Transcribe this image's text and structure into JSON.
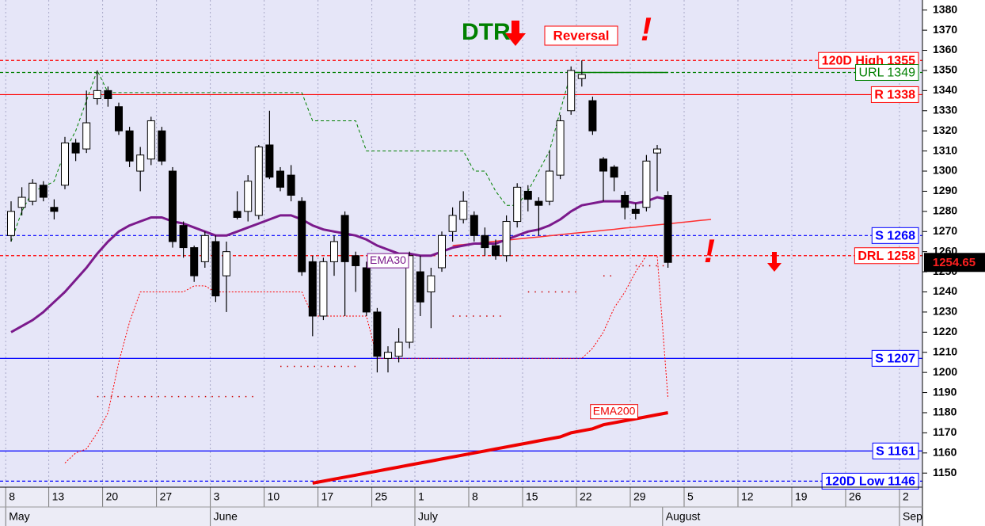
{
  "chart_data": {
    "type": "candlestick",
    "categories": [
      "8",
      null,
      null,
      null,
      "13",
      null,
      null,
      null,
      null,
      "20",
      null,
      null,
      null,
      null,
      "27",
      null,
      null,
      null,
      null,
      "3",
      null,
      null,
      null,
      null,
      "10",
      null,
      null,
      null,
      null,
      "17",
      null,
      null,
      null,
      null,
      "25",
      null,
      null,
      null,
      "1",
      null,
      null,
      null,
      null,
      "8",
      null,
      null,
      null,
      null,
      "15",
      null,
      null,
      null,
      null,
      "22",
      null,
      null,
      null,
      null,
      "29",
      null,
      null,
      null,
      null,
      "5",
      null,
      null,
      null,
      null,
      "12",
      null,
      null,
      null,
      null,
      "19",
      null,
      null,
      null,
      null,
      "26",
      null,
      null,
      null,
      null,
      "2",
      null
    ],
    "months": [
      "May",
      null,
      null,
      null,
      null,
      null,
      null,
      null,
      null,
      null,
      null,
      null,
      null,
      null,
      null,
      null,
      null,
      null,
      null,
      "June",
      null,
      null,
      null,
      null,
      null,
      null,
      null,
      null,
      null,
      null,
      null,
      null,
      null,
      null,
      null,
      null,
      null,
      null,
      "July",
      null,
      null,
      null,
      null,
      null,
      null,
      null,
      null,
      null,
      null,
      null,
      null,
      null,
      null,
      null,
      null,
      null,
      null,
      null,
      null,
      null,
      null,
      "August",
      null,
      null,
      null,
      null,
      null,
      null,
      null,
      null,
      null,
      null,
      null,
      null,
      null,
      null,
      null,
      null,
      null,
      null,
      null,
      null,
      null,
      "Sep",
      null
    ],
    "open": [
      1268,
      1282,
      1285,
      1293,
      1282,
      1293,
      1314,
      1311,
      1336,
      1340,
      1332,
      1320,
      1300,
      1306,
      1320,
      1300,
      1273,
      1262,
      1255,
      1265,
      1248,
      1280,
      1280,
      1278,
      1313,
      1300,
      1298,
      1285,
      1255,
      1228,
      1255,
      1278,
      1258,
      1252,
      1230,
      1207,
      1208,
      1215,
      1250,
      1240,
      1252,
      1270,
      1276,
      1278,
      1268,
      1263,
      1258,
      1275,
      1290,
      1285,
      1285,
      1298,
      1330,
      1346,
      1335,
      1306,
      1302,
      1288,
      1281,
      1282,
      1309,
      1288,
      null,
      null,
      null,
      null,
      null,
      null,
      null,
      null,
      null,
      null,
      null,
      null,
      null,
      null,
      null,
      null,
      null,
      null,
      null,
      null,
      null,
      null,
      null
    ],
    "high": [
      1285,
      1292,
      1296,
      1295,
      1286,
      1317,
      1316,
      1340,
      1350,
      1342,
      1334,
      1322,
      1312,
      1327,
      1322,
      1302,
      1275,
      1263,
      1270,
      1268,
      1265,
      1290,
      1298,
      1313,
      1330,
      1302,
      1303,
      1287,
      1258,
      1257,
      1268,
      1280,
      1260,
      1255,
      1232,
      1213,
      1222,
      1260,
      1258,
      1252,
      1270,
      1282,
      1290,
      1280,
      1272,
      1266,
      1278,
      1294,
      1293,
      1287,
      1310,
      1328,
      1352,
      1355,
      1337,
      1307,
      1303,
      1290,
      1284,
      1308,
      1313,
      1290,
      null,
      null,
      null,
      null,
      null,
      null,
      null,
      null,
      null,
      null,
      null,
      null,
      null,
      null,
      null,
      null,
      null,
      null,
      null,
      null,
      null,
      null,
      null
    ],
    "low": [
      1265,
      1278,
      1283,
      1285,
      1276,
      1291,
      1305,
      1309,
      1333,
      1332,
      1318,
      1302,
      1290,
      1303,
      1303,
      1262,
      1257,
      1245,
      1252,
      1235,
      1230,
      1276,
      1275,
      1276,
      1296,
      1290,
      1285,
      1248,
      1218,
      1226,
      1248,
      1228,
      1240,
      1228,
      1200,
      1200,
      1205,
      1212,
      1228,
      1222,
      1250,
      1265,
      1274,
      1265,
      1258,
      1256,
      1255,
      1272,
      1280,
      1268,
      1283,
      1296,
      1328,
      1342,
      1318,
      1285,
      1290,
      1276,
      1276,
      1280,
      1290,
      1252,
      null,
      null,
      null,
      null,
      null,
      null,
      null,
      null,
      null,
      null,
      null,
      null,
      null,
      null,
      null,
      null,
      null,
      null,
      null,
      null,
      null,
      null,
      null
    ],
    "close": [
      1280,
      1287,
      1294,
      1287,
      1280,
      1314,
      1309,
      1324,
      1340,
      1336,
      1320,
      1305,
      1308,
      1325,
      1305,
      1265,
      1262,
      1248,
      1268,
      1238,
      1260,
      1277,
      1295,
      1312,
      1297,
      1292,
      1288,
      1250,
      1228,
      1255,
      1265,
      1255,
      1253,
      1230,
      1208,
      1210,
      1215,
      1258,
      1235,
      1248,
      1268,
      1278,
      1285,
      1268,
      1262,
      1258,
      1275,
      1292,
      1286,
      1283,
      1300,
      1325,
      1350,
      1348,
      1320,
      1300,
      1297,
      1282,
      1279,
      1305,
      1311,
      1254.65,
      null,
      null,
      null,
      null,
      null,
      null,
      null,
      null,
      null,
      null,
      null,
      null,
      null,
      null,
      null,
      null,
      null,
      null,
      null,
      null,
      null,
      null,
      null
    ],
    "up_color": "#ffffff",
    "down_color": "#000000",
    "ylim": [
      1143,
      1385
    ],
    "yticks": [
      1150,
      1160,
      1170,
      1180,
      1190,
      1200,
      1210,
      1220,
      1230,
      1240,
      1250,
      1260,
      1270,
      1280,
      1290,
      1300,
      1310,
      1320,
      1330,
      1340,
      1350,
      1360,
      1370,
      1380
    ],
    "grid": "x",
    "lines": [
      {
        "color": "#008000",
        "style": "dashed",
        "width": 1,
        "values": [
          1265,
          1280,
          1290,
          1292,
          1295,
          1310,
          1320,
          1335,
          1350,
          1339,
          1339,
          1339,
          1339,
          1339,
          1339,
          1339,
          1339,
          1339,
          1339,
          1339,
          1339,
          1339,
          1339,
          1339,
          1339,
          1339,
          1339,
          1339,
          1325,
          1325,
          1325,
          1325,
          1325,
          1310,
          1310,
          1310,
          1310,
          1310,
          1310,
          1310,
          1310,
          1310,
          1310,
          1300,
          1300,
          1290,
          1283,
          1283,
          1290,
          1300,
          1310,
          1330,
          1349,
          null,
          null,
          null,
          null,
          null,
          null,
          null,
          null,
          null,
          null,
          null,
          null,
          null,
          null,
          null,
          null,
          null,
          null,
          null,
          null,
          null,
          null,
          null,
          null,
          null,
          null,
          null,
          null,
          null,
          null
        ]
      },
      {
        "color": "#008000",
        "style": "solid",
        "width": 1.5,
        "values": [
          null,
          null,
          null,
          null,
          null,
          null,
          null,
          null,
          null,
          null,
          null,
          null,
          null,
          null,
          null,
          null,
          null,
          null,
          null,
          null,
          null,
          null,
          null,
          null,
          null,
          null,
          null,
          null,
          null,
          null,
          null,
          null,
          null,
          null,
          null,
          null,
          null,
          null,
          null,
          null,
          null,
          null,
          null,
          null,
          null,
          null,
          null,
          null,
          null,
          null,
          null,
          null,
          1349,
          1349,
          1349,
          1349,
          1349,
          1349,
          1349,
          1349,
          1349,
          1349,
          null,
          null,
          null,
          null,
          null,
          null,
          null,
          null,
          null,
          null,
          null,
          null,
          null,
          null,
          null,
          null,
          null,
          null,
          null,
          null,
          null,
          null,
          null
        ]
      },
      {
        "color": "#ff0000",
        "style": "dotted",
        "width": 1,
        "values": [
          null,
          null,
          null,
          null,
          null,
          1155,
          1160,
          1162,
          1170,
          1180,
          1205,
          1225,
          1240,
          1240,
          1240,
          1240,
          1240,
          1243,
          1243,
          1240,
          1240,
          1240,
          1240,
          1240,
          1240,
          1240,
          1240,
          1240,
          1228,
          1228,
          1228,
          1228,
          1228,
          1228,
          1207,
          1207,
          1207,
          1207,
          1207,
          1207,
          1207,
          1207,
          1207,
          1207,
          1207,
          1207,
          1207,
          1207,
          1207,
          1207,
          1207,
          1207,
          1207,
          1207,
          1212,
          1220,
          1232,
          1240,
          1250,
          1258,
          1258,
          1187,
          null,
          null,
          null,
          null,
          null,
          null,
          null,
          null,
          null,
          null,
          null,
          null,
          null,
          null,
          null,
          null,
          null,
          null,
          null,
          null,
          null,
          null,
          null
        ]
      },
      {
        "color": "#cc0000",
        "style": "sparse",
        "width": 1.5,
        "values": [
          null,
          null,
          null,
          null,
          null,
          null,
          null,
          null,
          1188,
          1188,
          1188,
          1188,
          1188,
          1188,
          1188,
          1188,
          1188,
          1188,
          1188,
          1188,
          1188,
          1188,
          1188,
          1188,
          null,
          1203,
          1203,
          1203,
          1203,
          1203,
          1203,
          1203,
          1203,
          null,
          null,
          null,
          null,
          null,
          null,
          null,
          null,
          1228,
          1228,
          1228,
          1228,
          1228,
          1228,
          null,
          1240,
          1240,
          1240,
          1240,
          1240,
          1240,
          null,
          1248,
          1248,
          null,
          1253,
          1253,
          1253,
          1253,
          null,
          null,
          null,
          null,
          null,
          null,
          null,
          null,
          null,
          null,
          null,
          null,
          null,
          null,
          null,
          null,
          null,
          null,
          null,
          null,
          null,
          null,
          null
        ]
      },
      {
        "color": "#ff3030",
        "style": "solid",
        "width": 1.5,
        "values": [
          null,
          null,
          null,
          null,
          null,
          null,
          null,
          null,
          null,
          null,
          null,
          null,
          null,
          null,
          null,
          null,
          null,
          null,
          null,
          null,
          null,
          null,
          null,
          null,
          null,
          null,
          null,
          null,
          null,
          null,
          null,
          null,
          null,
          null,
          null,
          null,
          null,
          null,
          null,
          null,
          null,
          1263,
          1263.5,
          1264.1,
          1264.6,
          1265.2,
          1265.7,
          1266.3,
          1266.8,
          1267.3,
          1267.9,
          1268.4,
          1269,
          1269.5,
          1270,
          1270.6,
          1271.1,
          1271.7,
          1272.2,
          1272.8,
          1273.3,
          1273.8,
          1274.4,
          1274.9,
          1275.5,
          1276,
          null,
          null,
          null,
          null,
          null,
          null,
          null,
          null,
          null,
          null,
          null,
          null,
          null,
          null,
          null,
          null,
          null,
          null,
          null
        ]
      },
      {
        "name": "EMA30",
        "color": "#7b1a8c",
        "style": "solid",
        "width": 3,
        "values": [
          1220,
          1223,
          1226,
          1230,
          1235,
          1240,
          1246,
          1252,
          1259,
          1265,
          1270,
          1273,
          1275,
          1277,
          1277,
          1275,
          1274,
          1272,
          1270,
          1268,
          1268,
          1270,
          1272,
          1274,
          1276,
          1278,
          1278,
          1276,
          1273,
          1271,
          1270,
          1269,
          1268,
          1266,
          1263,
          1261,
          1259,
          1259,
          1258,
          1258,
          1260,
          1262,
          1263,
          1264,
          1264,
          1264,
          1266,
          1268,
          1270,
          1271,
          1273,
          1276,
          1280,
          1283,
          1284,
          1285,
          1285,
          1285,
          1284,
          1285,
          1287,
          1286,
          null,
          null,
          null,
          null,
          null,
          null,
          null,
          null,
          null,
          null,
          null,
          null,
          null,
          null,
          null,
          null,
          null,
          null,
          null,
          null,
          null,
          null,
          null
        ]
      },
      {
        "name": "EMA200",
        "color": "#ee0000",
        "style": "solid",
        "width": 4,
        "values": [
          null,
          null,
          null,
          null,
          null,
          null,
          null,
          null,
          null,
          null,
          null,
          null,
          null,
          null,
          null,
          null,
          null,
          null,
          null,
          null,
          null,
          null,
          null,
          null,
          null,
          null,
          null,
          null,
          1145,
          1146,
          1147,
          1148,
          1149,
          1150,
          1151,
          1152,
          1153,
          1154,
          1155,
          1156,
          1157,
          1158,
          1159,
          1160,
          1161,
          1162,
          1163,
          1164,
          1165,
          1166,
          1167,
          1168,
          1170,
          1171,
          1172,
          1174,
          1175,
          1176,
          1177,
          1178,
          1179,
          1180,
          null,
          null,
          null,
          null,
          null,
          null,
          null,
          null,
          null,
          null,
          null,
          null,
          null,
          null,
          null,
          null,
          null,
          null,
          null,
          null,
          null,
          null,
          null
        ]
      }
    ],
    "levels": [
      {
        "label": "120D High 1355",
        "value": 1355,
        "color": "#ff0000",
        "style": "dashed"
      },
      {
        "label": "URL 1349",
        "value": 1349,
        "color": "#008000",
        "style": "dashed"
      },
      {
        "label": "R 1338",
        "value": 1338,
        "color": "#ff0000",
        "style": "solid"
      },
      {
        "label": "S 1268",
        "value": 1268,
        "color": "#0000ff",
        "style": "dashed"
      },
      {
        "label": "DRL 1258",
        "value": 1258,
        "color": "#ff0000",
        "style": "dashed"
      },
      {
        "label": "S 1207",
        "value": 1207,
        "color": "#0000ff",
        "style": "solid"
      },
      {
        "label": "S 1161",
        "value": 1161,
        "color": "#0000ff",
        "style": "solid"
      },
      {
        "label": "120D Low 1146",
        "value": 1146,
        "color": "#0000ff",
        "style": "dashed"
      }
    ],
    "annotations": {
      "dtr": "DTR",
      "reversal": "Reversal",
      "exclamation": "!"
    }
  }
}
